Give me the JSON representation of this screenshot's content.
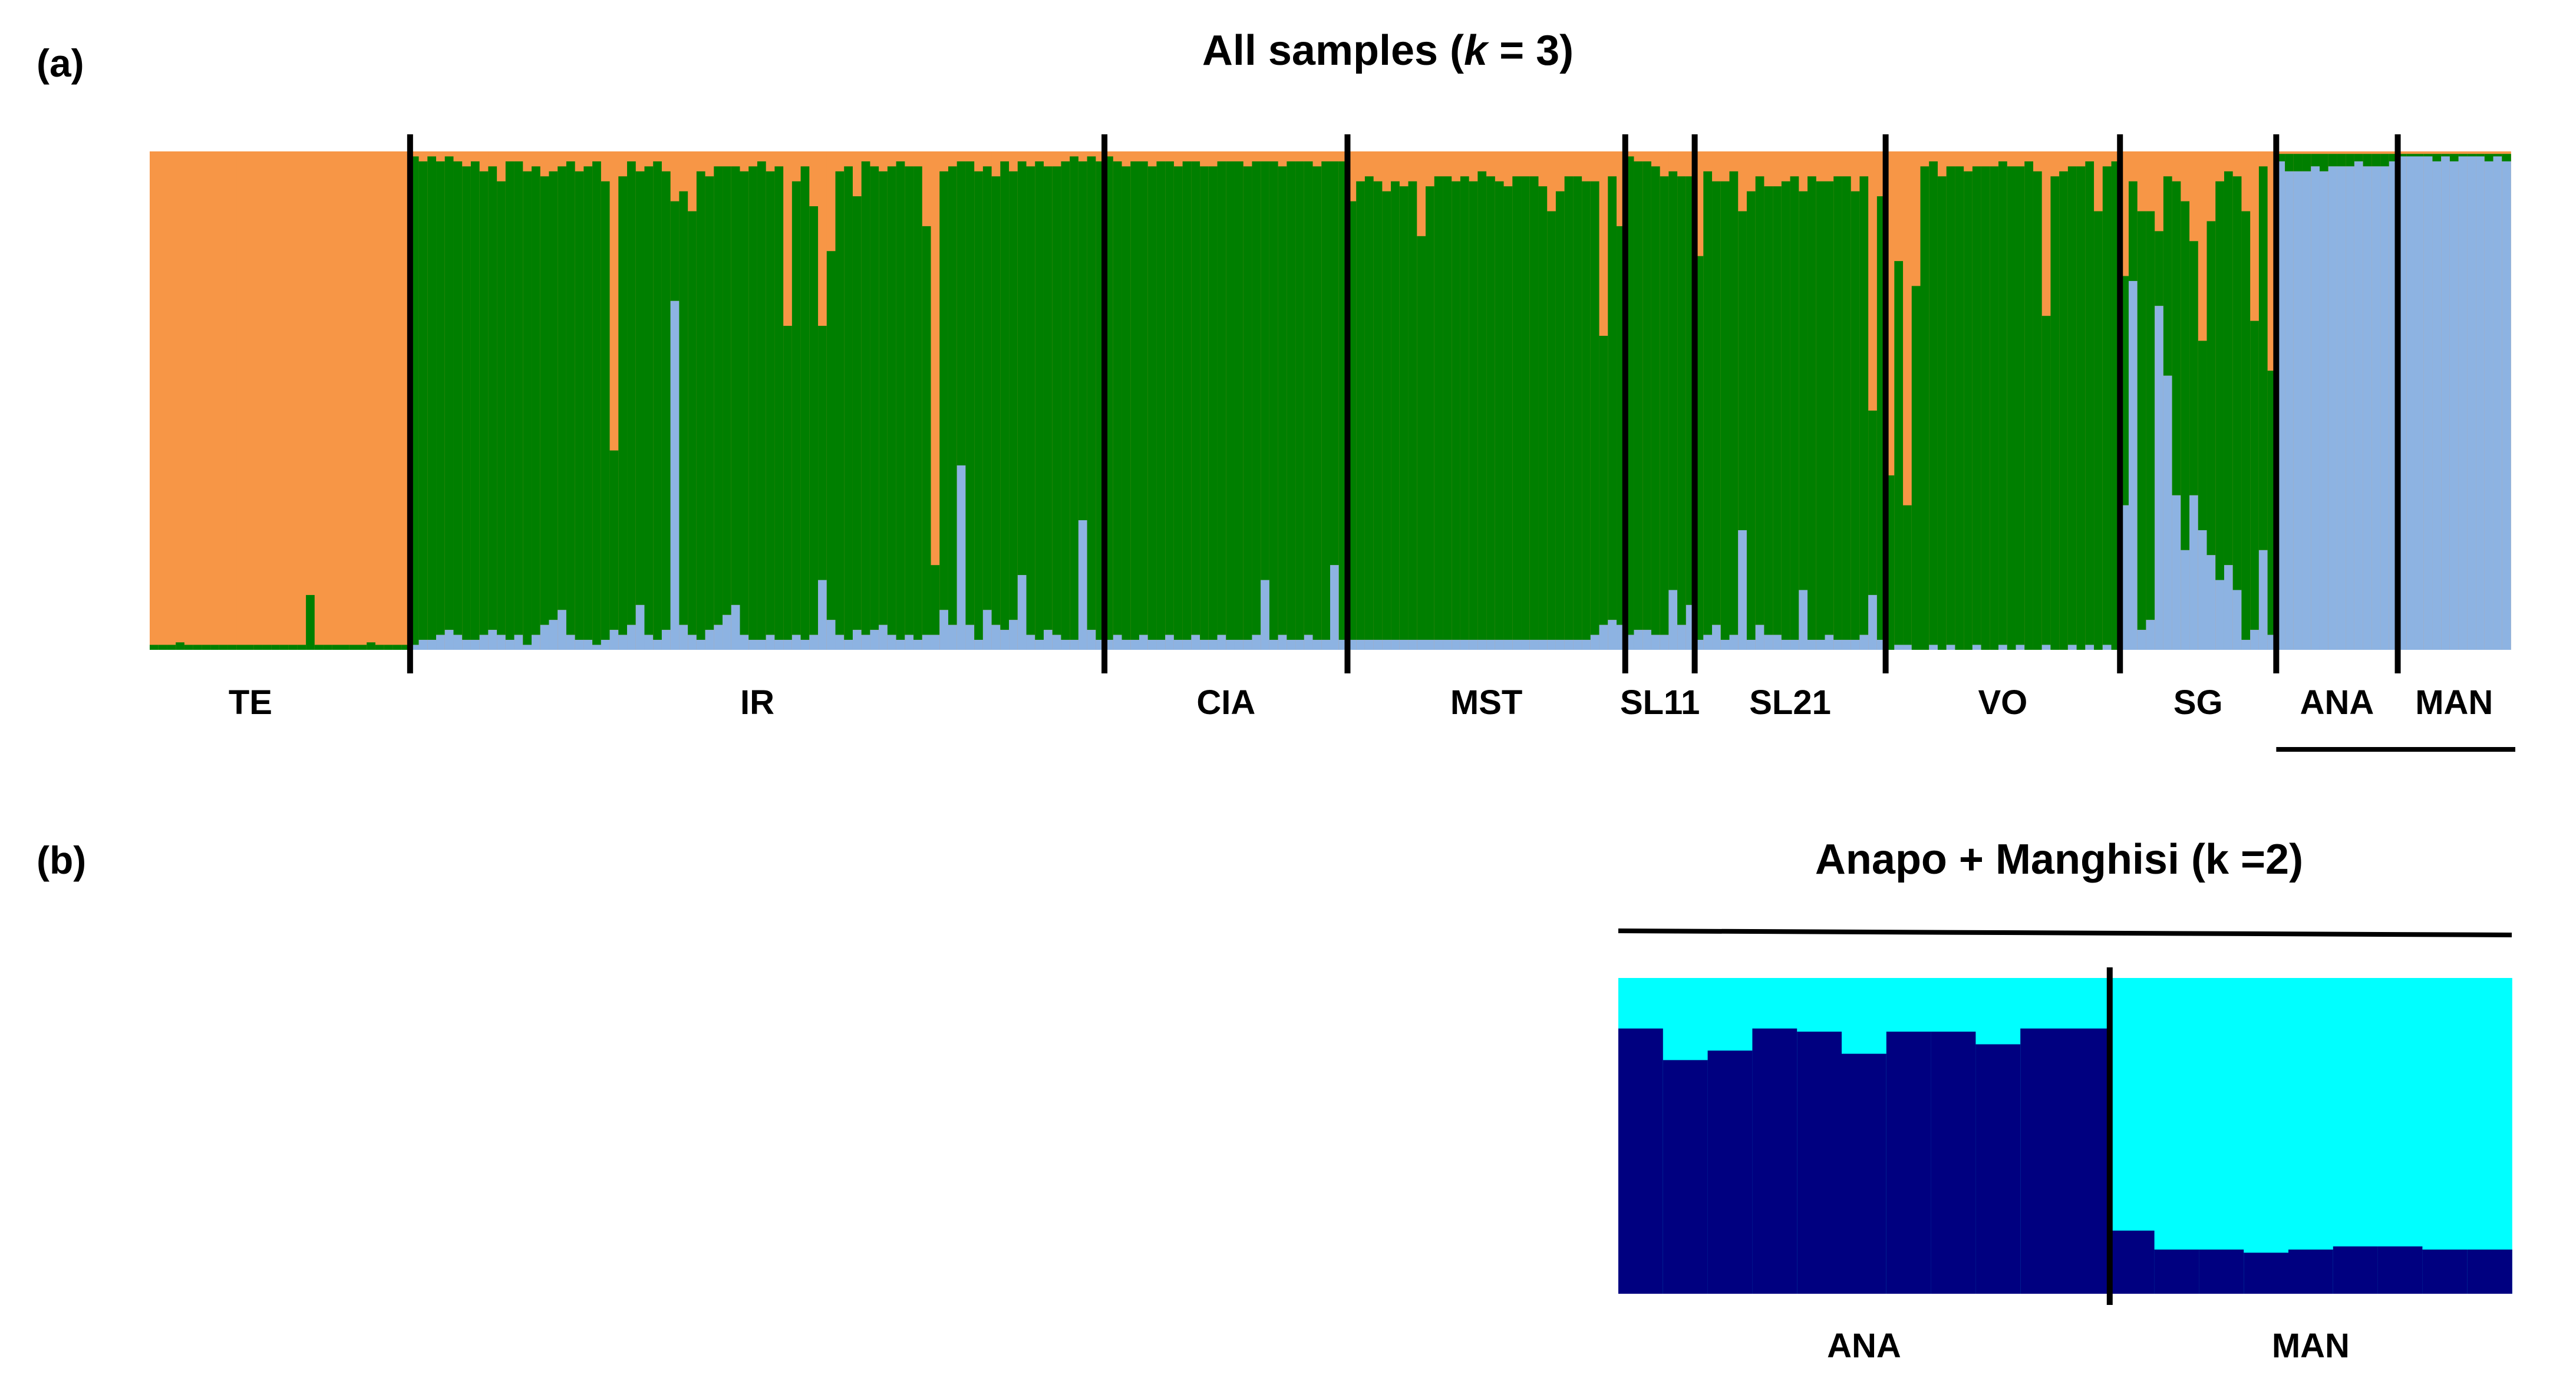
{
  "panel_a": {
    "label": "(a)",
    "title_pre": "All samples (",
    "title_k": "k",
    "title_post": " = 3)"
  },
  "panel_b": {
    "label": "(b)",
    "title": "Anapo + Manghisi (k =2)"
  },
  "chart_data": [
    {
      "type": "bar",
      "stacked": true,
      "normalized": true,
      "title": "All samples (k = 3)",
      "ylim": [
        0,
        1
      ],
      "grid": false,
      "colors": {
        "cluster_blue": "#8DB3E2",
        "cluster_green": "#007F00",
        "cluster_orange": "#F79646",
        "separator": "#000000"
      },
      "groups": [
        {
          "name": "TE",
          "count": 30,
          "blue": [
            0,
            0,
            0,
            0,
            0,
            0,
            0,
            0,
            0,
            0,
            0,
            0,
            0,
            0,
            0,
            0,
            0,
            0,
            0,
            0,
            0,
            0,
            0,
            0,
            0,
            0,
            0,
            0,
            0,
            0
          ],
          "green": [
            0.01,
            0.01,
            0.01,
            0.015,
            0.01,
            0.01,
            0.01,
            0.01,
            0.01,
            0.01,
            0.01,
            0.01,
            0.01,
            0.01,
            0.01,
            0.01,
            0.01,
            0.01,
            0.11,
            0.01,
            0.01,
            0.01,
            0.01,
            0.01,
            0.01,
            0.015,
            0.01,
            0.01,
            0.01,
            0.01
          ]
        },
        {
          "name": "IR",
          "count": 80,
          "blue": [
            0.01,
            0.02,
            0.02,
            0.03,
            0.04,
            0.03,
            0.02,
            0.02,
            0.03,
            0.04,
            0.03,
            0.02,
            0.03,
            0.01,
            0.03,
            0.05,
            0.06,
            0.08,
            0.03,
            0.02,
            0.02,
            0.01,
            0.02,
            0.04,
            0.03,
            0.05,
            0.09,
            0.03,
            0.02,
            0.04,
            0.7,
            0.05,
            0.03,
            0.02,
            0.04,
            0.05,
            0.07,
            0.09,
            0.03,
            0.02,
            0.02,
            0.03,
            0.02,
            0.02,
            0.03,
            0.02,
            0.03,
            0.14,
            0.06,
            0.03,
            0.02,
            0.04,
            0.03,
            0.04,
            0.05,
            0.03,
            0.02,
            0.03,
            0.02,
            0.03,
            0.03,
            0.08,
            0.05,
            0.37,
            0.05,
            0.02,
            0.08,
            0.05,
            0.04,
            0.06,
            0.15,
            0.03,
            0.02,
            0.04,
            0.03,
            0.02,
            0.02,
            0.26,
            0.04,
            0.02
          ],
          "orange": [
            0.01,
            0.02,
            0.01,
            0.02,
            0.01,
            0.02,
            0.03,
            0.02,
            0.04,
            0.03,
            0.06,
            0.02,
            0.02,
            0.04,
            0.03,
            0.05,
            0.04,
            0.03,
            0.02,
            0.04,
            0.03,
            0.02,
            0.06,
            0.6,
            0.05,
            0.02,
            0.04,
            0.03,
            0.02,
            0.04,
            0.1,
            0.08,
            0.12,
            0.04,
            0.05,
            0.03,
            0.03,
            0.03,
            0.04,
            0.03,
            0.02,
            0.04,
            0.03,
            0.35,
            0.06,
            0.03,
            0.11,
            0.35,
            0.2,
            0.04,
            0.03,
            0.09,
            0.02,
            0.03,
            0.04,
            0.03,
            0.02,
            0.03,
            0.03,
            0.15,
            0.83,
            0.04,
            0.03,
            0.02,
            0.02,
            0.04,
            0.03,
            0.05,
            0.02,
            0.04,
            0.02,
            0.03,
            0.02,
            0.03,
            0.03,
            0.02,
            0.01,
            0.02,
            0.01,
            0.02
          ]
        },
        {
          "name": "CIA",
          "count": 28,
          "blue": [
            0.02,
            0.03,
            0.02,
            0.02,
            0.03,
            0.02,
            0.02,
            0.03,
            0.02,
            0.02,
            0.03,
            0.02,
            0.02,
            0.03,
            0.02,
            0.02,
            0.02,
            0.03,
            0.14,
            0.02,
            0.03,
            0.02,
            0.02,
            0.03,
            0.02,
            0.02,
            0.17,
            0.02
          ],
          "orange": [
            0.01,
            0.02,
            0.03,
            0.02,
            0.02,
            0.03,
            0.02,
            0.02,
            0.03,
            0.02,
            0.02,
            0.03,
            0.03,
            0.02,
            0.02,
            0.02,
            0.03,
            0.02,
            0.02,
            0.02,
            0.03,
            0.02,
            0.02,
            0.02,
            0.03,
            0.02,
            0.02,
            0.02
          ]
        },
        {
          "name": "MST",
          "count": 32,
          "blue": [
            0.02,
            0.02,
            0.02,
            0.02,
            0.02,
            0.02,
            0.02,
            0.02,
            0.02,
            0.02,
            0.02,
            0.02,
            0.02,
            0.02,
            0.02,
            0.02,
            0.02,
            0.02,
            0.02,
            0.02,
            0.02,
            0.02,
            0.02,
            0.02,
            0.02,
            0.02,
            0.02,
            0.02,
            0.03,
            0.05,
            0.06,
            0.05
          ],
          "orange": [
            0.1,
            0.06,
            0.05,
            0.06,
            0.08,
            0.06,
            0.07,
            0.06,
            0.17,
            0.07,
            0.05,
            0.05,
            0.06,
            0.05,
            0.06,
            0.04,
            0.05,
            0.06,
            0.07,
            0.05,
            0.05,
            0.05,
            0.07,
            0.12,
            0.08,
            0.05,
            0.05,
            0.06,
            0.06,
            0.37,
            0.05,
            0.15
          ]
        },
        {
          "name": "SL11",
          "count": 8,
          "blue": [
            0.03,
            0.04,
            0.04,
            0.03,
            0.03,
            0.12,
            0.05,
            0.09
          ],
          "orange": [
            0.01,
            0.02,
            0.02,
            0.03,
            0.05,
            0.04,
            0.05,
            0.05
          ]
        },
        {
          "name": "SL21",
          "count": 22,
          "blue": [
            0.02,
            0.03,
            0.05,
            0.02,
            0.03,
            0.24,
            0.02,
            0.05,
            0.03,
            0.03,
            0.02,
            0.02,
            0.12,
            0.02,
            0.02,
            0.03,
            0.02,
            0.02,
            0.02,
            0.03,
            0.11,
            0.02
          ],
          "orange": [
            0.21,
            0.04,
            0.06,
            0.06,
            0.04,
            0.12,
            0.08,
            0.05,
            0.07,
            0.07,
            0.06,
            0.05,
            0.08,
            0.05,
            0.06,
            0.06,
            0.05,
            0.05,
            0.08,
            0.05,
            0.52,
            0.09
          ]
        },
        {
          "name": "VO",
          "count": 27,
          "blue": [
            0,
            0.01,
            0.01,
            0,
            0,
            0.01,
            0,
            0.01,
            0,
            0,
            0.01,
            0,
            0,
            0.01,
            0,
            0.01,
            0,
            0,
            0.01,
            0,
            0,
            0.01,
            0,
            0.01,
            0,
            0.01,
            0
          ],
          "orange": [
            0.65,
            0.22,
            0.71,
            0.27,
            0.03,
            0.02,
            0.05,
            0.03,
            0.03,
            0.04,
            0.03,
            0.03,
            0.03,
            0.02,
            0.03,
            0.03,
            0.02,
            0.04,
            0.33,
            0.05,
            0.04,
            0.03,
            0.03,
            0.02,
            0.12,
            0.03,
            0.02
          ]
        },
        {
          "name": "SG",
          "count": 18,
          "blue": [
            0.29,
            0.74,
            0.04,
            0.06,
            0.69,
            0.55,
            0.31,
            0.2,
            0.31,
            0.24,
            0.19,
            0.14,
            0.17,
            0.12,
            0.02,
            0.04,
            0.2,
            0.03
          ],
          "orange": [
            0.25,
            0.06,
            0.12,
            0.12,
            0.16,
            0.05,
            0.06,
            0.1,
            0.18,
            0.38,
            0.14,
            0.06,
            0.04,
            0.05,
            0.12,
            0.34,
            0.03,
            0.44
          ]
        },
        {
          "name": "ANA",
          "count": 14,
          "blue": [
            0.98,
            0.96,
            0.96,
            0.96,
            0.97,
            0.96,
            0.97,
            0.97,
            0.97,
            0.98,
            0.97,
            0.97,
            0.97,
            0.98
          ],
          "orange": [
            0.005,
            0.005,
            0.005,
            0.005,
            0.005,
            0.005,
            0.005,
            0.005,
            0.005,
            0.005,
            0.005,
            0.005,
            0.005,
            0.005
          ]
        },
        {
          "name": "MAN",
          "count": 13,
          "blue": [
            0.99,
            0.99,
            0.99,
            0.99,
            0.98,
            0.99,
            0.98,
            0.99,
            0.99,
            0.99,
            0.98,
            0.99,
            0.98
          ],
          "orange": [
            0.005,
            0.005,
            0.005,
            0.005,
            0.005,
            0.005,
            0.005,
            0.005,
            0.005,
            0.005,
            0.005,
            0.005,
            0.005
          ]
        }
      ],
      "bracket_groups": [
        "ANA",
        "MAN"
      ]
    },
    {
      "type": "bar",
      "stacked": true,
      "normalized": true,
      "title": "Anapo + Manghisi (k =2)",
      "ylim": [
        0,
        1
      ],
      "grid": false,
      "colors": {
        "cluster_navy": "#000080",
        "cluster_cyan": "#00FFFF",
        "separator": "#000000"
      },
      "groups": [
        {
          "name": "ANA",
          "count": 11,
          "navy": [
            0.84,
            0.74,
            0.77,
            0.84,
            0.83,
            0.76,
            0.83,
            0.83,
            0.79,
            0.84,
            0.84
          ]
        },
        {
          "name": "MAN",
          "count": 9,
          "navy": [
            0.2,
            0.14,
            0.14,
            0.13,
            0.14,
            0.15,
            0.15,
            0.14,
            0.14
          ]
        }
      ],
      "bracket_groups": [
        "ANA",
        "MAN"
      ]
    }
  ]
}
